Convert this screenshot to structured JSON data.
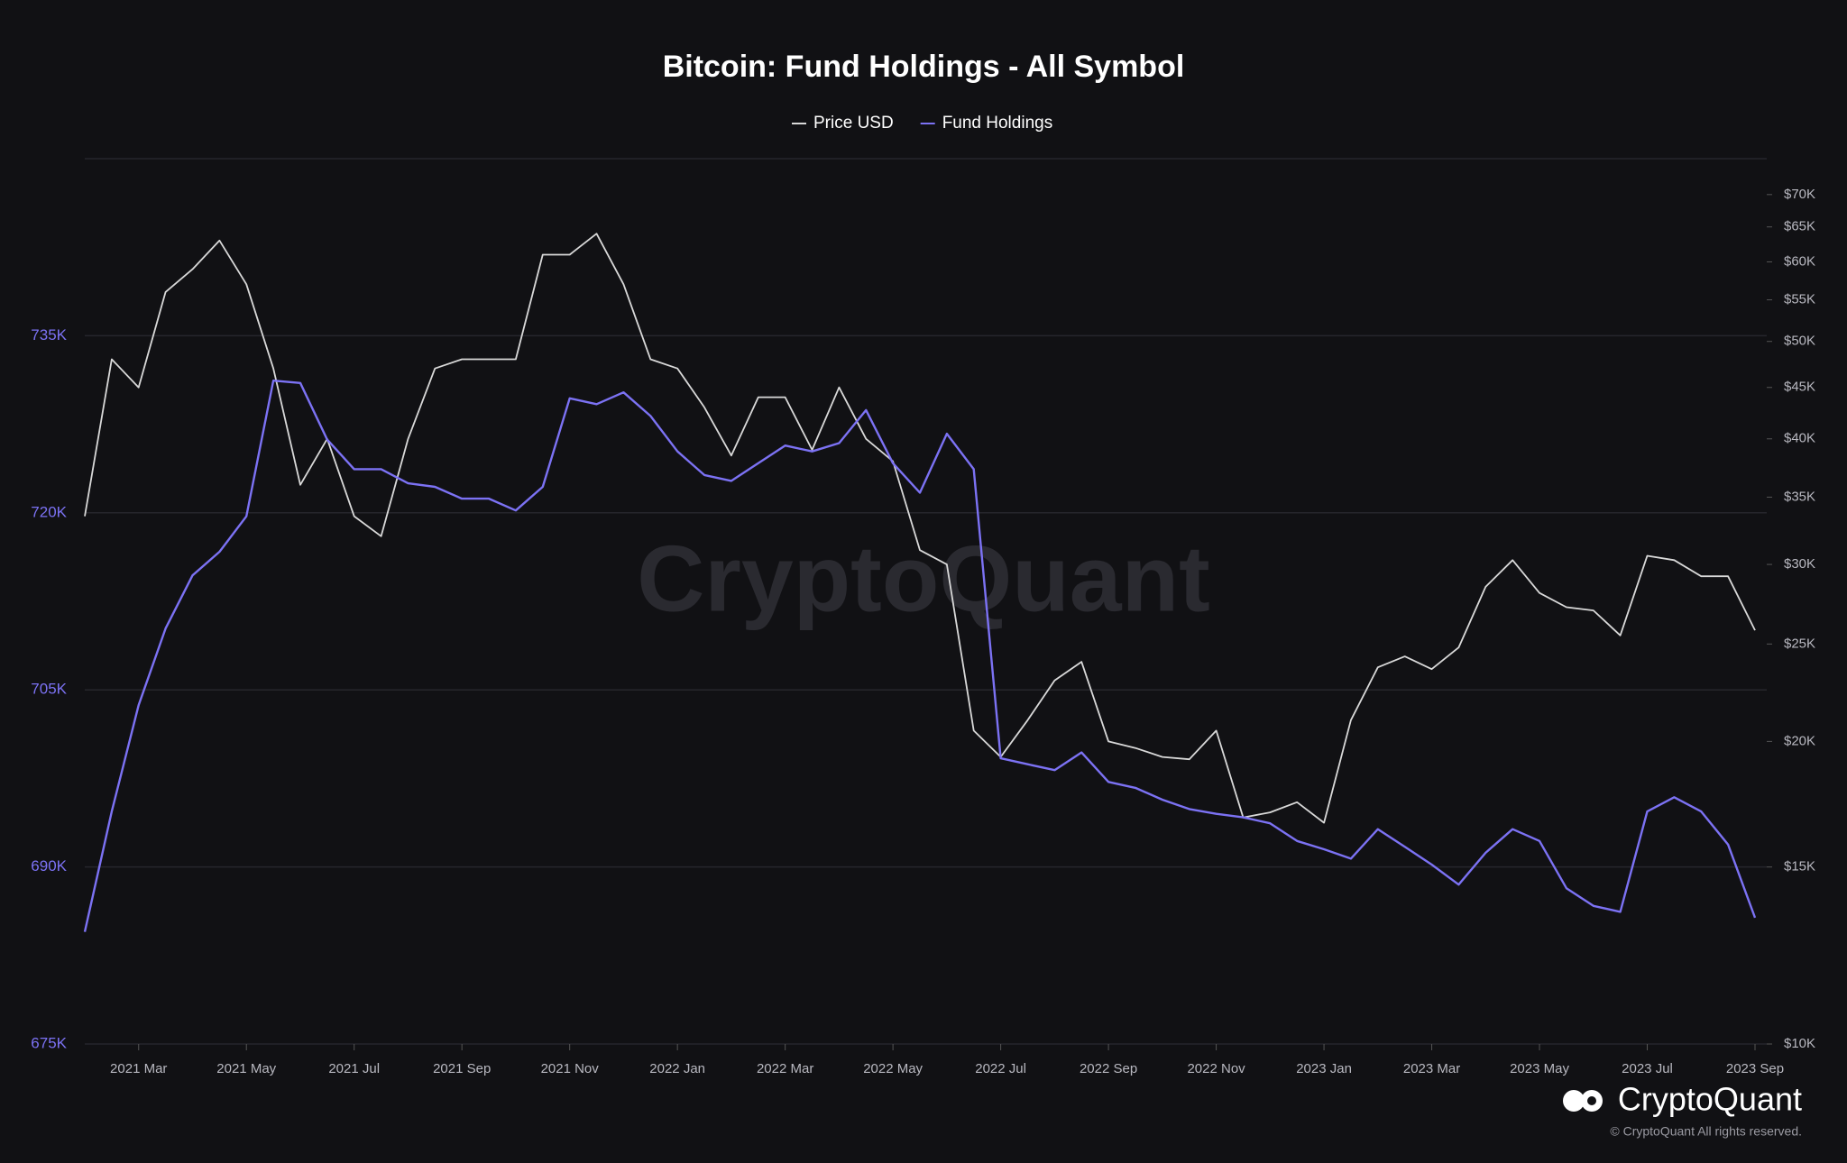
{
  "chart_data": {
    "type": "line",
    "title": "Bitcoin: Fund Holdings - All Symbol",
    "watermark": "CryptoQuant",
    "logo_text": "CryptoQuant",
    "copyright": "© CryptoQuant All rights reserved.",
    "categories": [
      null,
      null,
      "2021 Mar",
      null,
      null,
      null,
      "2021 May",
      null,
      null,
      null,
      "2021 Jul",
      null,
      null,
      null,
      "2021 Sep",
      null,
      null,
      null,
      "2021 Nov",
      null,
      null,
      null,
      "2022 Jan",
      null,
      null,
      null,
      "2022 Mar",
      null,
      null,
      null,
      "2022 May",
      null,
      null,
      null,
      "2022 Jul",
      null,
      null,
      null,
      "2022 Sep",
      null,
      null,
      null,
      "2022 Nov",
      null,
      null,
      null,
      "2023 Jan",
      null,
      null,
      null,
      "2023 Mar",
      null,
      null,
      null,
      "2023 May",
      null,
      null,
      null,
      "2023 Jul",
      null,
      null,
      null,
      "2023 Sep"
    ],
    "series": [
      {
        "name": "Price USD",
        "color": "#d9d9d9",
        "axis": "y2",
        "values": [
          33500,
          48000,
          45000,
          56000,
          59000,
          63000,
          57000,
          47000,
          36000,
          40000,
          33500,
          32000,
          40000,
          47000,
          48000,
          48000,
          48000,
          61000,
          61000,
          64000,
          57000,
          48000,
          47000,
          43000,
          38500,
          44000,
          44000,
          39000,
          45000,
          40000,
          38000,
          31000,
          30000,
          20500,
          19300,
          21000,
          23000,
          24000,
          20000,
          19700,
          19300,
          19200,
          20500,
          16800,
          17000,
          17400,
          16600,
          21000,
          23700,
          24300,
          23600,
          24800,
          28500,
          30300,
          28100,
          27200,
          27000,
          25500,
          30600,
          30300,
          29200,
          29200,
          25800
        ]
      },
      {
        "name": "Fund Holdings",
        "color": "#7c72f4",
        "values": [
          684500,
          694700,
          703700,
          710200,
          714700,
          716700,
          719700,
          731200,
          731000,
          726200,
          723700,
          723700,
          722500,
          722200,
          721200,
          721200,
          720200,
          722200,
          729700,
          729200,
          730200,
          728200,
          725200,
          723200,
          722700,
          724200,
          725700,
          725200,
          725900,
          728700,
          724200,
          721700,
          726700,
          723700,
          699200,
          698700,
          698200,
          699700,
          697200,
          696700,
          695700,
          694900,
          694500,
          694200,
          693700,
          692200,
          691500,
          690700,
          693200,
          691700,
          690200,
          688500,
          691200,
          693200,
          692200,
          688200,
          686700,
          686200,
          694700,
          695900,
          694700,
          691900,
          685700
        ]
      }
    ],
    "ylim": [
      675000,
      750000
    ],
    "yticks": [
      {
        "value": 675000,
        "label": "675K"
      },
      {
        "value": 690000,
        "label": "690K"
      },
      {
        "value": 705000,
        "label": "705K"
      },
      {
        "value": 720000,
        "label": "720K"
      },
      {
        "value": 735000,
        "label": "735K"
      }
    ],
    "y2lim": [
      10000,
      76000
    ],
    "y2scale": "log",
    "y2ticks": [
      {
        "value": 10000,
        "label": "$10K"
      },
      {
        "value": 15000,
        "label": "$15K"
      },
      {
        "value": 20000,
        "label": "$20K"
      },
      {
        "value": 25000,
        "label": "$25K"
      },
      {
        "value": 30000,
        "label": "$30K"
      },
      {
        "value": 35000,
        "label": "$35K"
      },
      {
        "value": 40000,
        "label": "$40K"
      },
      {
        "value": 45000,
        "label": "$45K"
      },
      {
        "value": 50000,
        "label": "$50K"
      },
      {
        "value": 55000,
        "label": "$55K"
      },
      {
        "value": 60000,
        "label": "$60K"
      },
      {
        "value": 65000,
        "label": "$65K"
      },
      {
        "value": 70000,
        "label": "$70K"
      }
    ],
    "grid": true,
    "legend": "top"
  }
}
